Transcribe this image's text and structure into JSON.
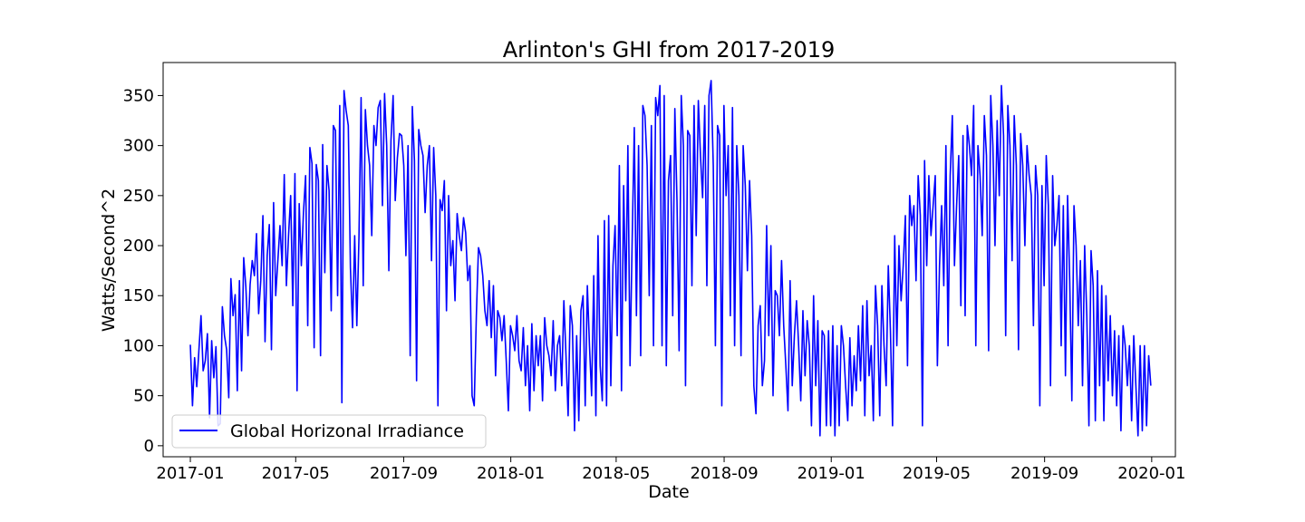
{
  "chart_data": {
    "type": "line",
    "title": "Arlinton's GHI from 2017-2019",
    "xlabel": "Date",
    "ylabel": "Watts/Second^2",
    "x_range": [
      "2016-12-01",
      "2020-01-28"
    ],
    "ylim": [
      -11,
      383
    ],
    "grid": false,
    "legend_position": "lower-left",
    "x_ticks": [
      "2017-01",
      "2017-05",
      "2017-09",
      "2018-01",
      "2018-05",
      "2018-09",
      "2019-01",
      "2019-05",
      "2019-09",
      "2020-01"
    ],
    "y_ticks": [
      0,
      50,
      100,
      150,
      200,
      250,
      300,
      350
    ],
    "series": [
      {
        "name": "Global Horizonal Irradiance",
        "color": "#0000ff",
        "x_start": "2017-01-01",
        "x_end": "2019-12-31",
        "values": [
          101,
          40,
          88,
          59,
          95,
          130,
          75,
          85,
          112,
          28,
          105,
          68,
          99,
          20,
          22,
          139,
          110,
          96,
          48,
          167,
          130,
          151,
          55,
          165,
          75,
          188,
          159,
          110,
          161,
          185,
          170,
          212,
          132,
          165,
          230,
          104,
          190,
          221,
          96,
          243,
          150,
          185,
          220,
          180,
          271,
          160,
          210,
          250,
          140,
          272,
          55,
          242,
          180,
          233,
          270,
          120,
          298,
          282,
          98,
          281,
          265,
          90,
          301,
          173,
          280,
          255,
          135,
          320,
          315,
          150,
          340,
          43,
          355,
          335,
          320,
          178,
          118,
          210,
          120,
          208,
          348,
          160,
          336,
          300,
          280,
          210,
          320,
          300,
          338,
          345,
          240,
          352,
          300,
          175,
          305,
          350,
          245,
          288,
          312,
          310,
          280,
          190,
          300,
          90,
          339,
          285,
          65,
          316,
          300,
          290,
          233,
          280,
          300,
          185,
          298,
          250,
          40,
          246,
          235,
          265,
          135,
          250,
          180,
          205,
          145,
          232,
          210,
          195,
          228,
          213,
          165,
          180,
          50,
          40,
          130,
          198,
          190,
          170,
          135,
          120,
          165,
          108,
          160,
          70,
          135,
          128,
          105,
          130,
          85,
          35,
          120,
          110,
          95,
          130,
          85,
          75,
          118,
          60,
          100,
          35,
          122,
          55,
          110,
          80,
          110,
          45,
          128,
          100,
          90,
          70,
          125,
          55,
          100,
          110,
          60,
          145,
          90,
          30,
          140,
          120,
          15,
          110,
          25,
          135,
          150,
          40,
          160,
          100,
          50,
          170,
          30,
          210,
          80,
          45,
          225,
          40,
          230,
          60,
          180,
          220,
          110,
          280,
          55,
          260,
          145,
          300,
          80,
          205,
          318,
          130,
          300,
          90,
          340,
          330,
          280,
          150,
          320,
          100,
          348,
          330,
          360,
          100,
          350,
          80,
          265,
          290,
          130,
          337,
          245,
          95,
          350,
          300,
          60,
          315,
          310,
          160,
          340,
          210,
          345,
          290,
          248,
          340,
          160,
          350,
          365,
          280,
          100,
          320,
          310,
          40,
          340,
          250,
          300,
          130,
          338,
          100,
          300,
          250,
          90,
          300,
          260,
          175,
          265,
          210,
          60,
          32,
          120,
          140,
          60,
          85,
          220,
          110,
          200,
          50,
          155,
          150,
          110,
          185,
          120,
          80,
          35,
          165,
          60,
          110,
          145,
          100,
          45,
          135,
          70,
          125,
          100,
          20,
          150,
          60,
          125,
          10,
          115,
          110,
          20,
          115,
          20,
          120,
          10,
          100,
          20,
          120,
          100,
          60,
          25,
          108,
          40,
          90,
          55,
          120,
          65,
          140,
          30,
          145,
          70,
          100,
          25,
          160,
          120,
          30,
          160,
          100,
          60,
          180,
          115,
          20,
          210,
          100,
          200,
          145,
          180,
          230,
          80,
          250,
          220,
          240,
          165,
          270,
          230,
          20,
          285,
          180,
          270,
          210,
          240,
          270,
          80,
          180,
          240,
          160,
          300,
          100,
          270,
          330,
          180,
          240,
          290,
          140,
          310,
          130,
          320,
          300,
          270,
          340,
          100,
          300,
          270,
          210,
          330,
          290,
          95,
          350,
          300,
          200,
          325,
          250,
          360,
          310,
          110,
          340,
          300,
          185,
          330,
          280,
          96,
          312,
          280,
          200,
          300,
          270,
          250,
          120,
          280,
          250,
          40,
          260,
          160,
          290,
          240,
          60,
          270,
          200,
          220,
          250,
          100,
          240,
          70,
          250,
          165,
          45,
          240,
          200,
          120,
          185,
          60,
          200,
          130,
          20,
          195,
          160,
          25,
          175,
          60,
          160,
          25,
          150,
          65,
          130,
          50,
          115,
          40,
          110,
          15,
          120,
          100,
          60,
          100,
          25,
          110,
          60,
          10,
          100,
          15,
          100,
          20,
          90,
          60
        ]
      }
    ]
  }
}
